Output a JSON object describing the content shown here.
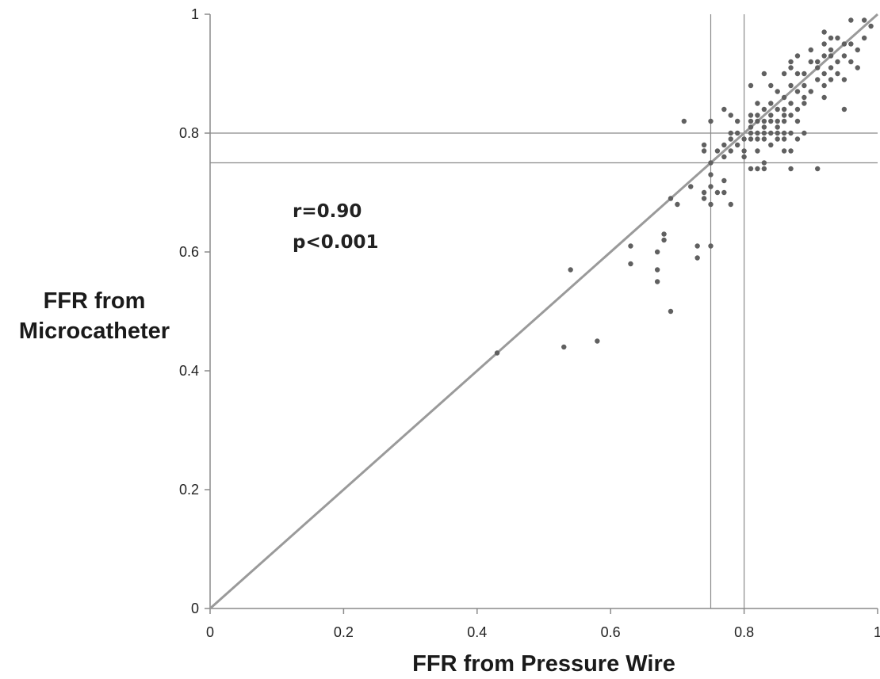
{
  "chart_data": {
    "type": "scatter",
    "title": "",
    "xlabel": "FFR from Pressure Wire",
    "ylabel_lines": [
      "FFR from",
      "Microcatheter"
    ],
    "xlim": [
      0,
      1
    ],
    "ylim": [
      0,
      1
    ],
    "xticks": [
      "0",
      "0.2",
      "0.4",
      "0.6",
      "0.8",
      "1"
    ],
    "yticks": [
      "0",
      "0.2",
      "0.4",
      "0.6",
      "0.8",
      "1"
    ],
    "xtick_values": [
      0,
      0.2,
      0.4,
      0.6,
      0.8,
      1
    ],
    "ytick_values": [
      0,
      0.2,
      0.4,
      0.6,
      0.8,
      1
    ],
    "grid": false,
    "reference_lines": {
      "vertical": [
        0.75,
        0.8
      ],
      "horizontal": [
        0.75,
        0.8
      ]
    },
    "identity_line": {
      "from": [
        0,
        0
      ],
      "to": [
        1,
        1
      ]
    },
    "annotations": [
      "r=0.90",
      "p<0.001"
    ],
    "colors": {
      "points": "#606060",
      "identity": "#9a9a9a",
      "refs": "#8a8a8a",
      "axis": "#8a8a8a"
    },
    "points": [
      [
        0.43,
        0.43
      ],
      [
        0.53,
        0.44
      ],
      [
        0.54,
        0.57
      ],
      [
        0.58,
        0.45
      ],
      [
        0.63,
        0.61
      ],
      [
        0.63,
        0.58
      ],
      [
        0.67,
        0.6
      ],
      [
        0.67,
        0.57
      ],
      [
        0.67,
        0.55
      ],
      [
        0.68,
        0.63
      ],
      [
        0.68,
        0.62
      ],
      [
        0.69,
        0.69
      ],
      [
        0.69,
        0.5
      ],
      [
        0.7,
        0.68
      ],
      [
        0.71,
        0.82
      ],
      [
        0.72,
        0.71
      ],
      [
        0.73,
        0.61
      ],
      [
        0.73,
        0.59
      ],
      [
        0.74,
        0.78
      ],
      [
        0.74,
        0.77
      ],
      [
        0.74,
        0.7
      ],
      [
        0.74,
        0.69
      ],
      [
        0.75,
        0.82
      ],
      [
        0.75,
        0.75
      ],
      [
        0.75,
        0.73
      ],
      [
        0.75,
        0.71
      ],
      [
        0.75,
        0.68
      ],
      [
        0.75,
        0.61
      ],
      [
        0.76,
        0.77
      ],
      [
        0.76,
        0.7
      ],
      [
        0.77,
        0.84
      ],
      [
        0.77,
        0.78
      ],
      [
        0.77,
        0.76
      ],
      [
        0.77,
        0.72
      ],
      [
        0.77,
        0.7
      ],
      [
        0.78,
        0.83
      ],
      [
        0.78,
        0.8
      ],
      [
        0.78,
        0.79
      ],
      [
        0.78,
        0.77
      ],
      [
        0.78,
        0.68
      ],
      [
        0.79,
        0.82
      ],
      [
        0.79,
        0.8
      ],
      [
        0.79,
        0.78
      ],
      [
        0.8,
        0.79
      ],
      [
        0.8,
        0.77
      ],
      [
        0.8,
        0.76
      ],
      [
        0.81,
        0.88
      ],
      [
        0.81,
        0.83
      ],
      [
        0.81,
        0.82
      ],
      [
        0.81,
        0.81
      ],
      [
        0.81,
        0.8
      ],
      [
        0.81,
        0.79
      ],
      [
        0.81,
        0.74
      ],
      [
        0.82,
        0.85
      ],
      [
        0.82,
        0.83
      ],
      [
        0.82,
        0.82
      ],
      [
        0.82,
        0.8
      ],
      [
        0.82,
        0.79
      ],
      [
        0.82,
        0.77
      ],
      [
        0.82,
        0.74
      ],
      [
        0.83,
        0.9
      ],
      [
        0.83,
        0.84
      ],
      [
        0.83,
        0.82
      ],
      [
        0.83,
        0.81
      ],
      [
        0.83,
        0.8
      ],
      [
        0.83,
        0.79
      ],
      [
        0.83,
        0.75
      ],
      [
        0.83,
        0.74
      ],
      [
        0.84,
        0.88
      ],
      [
        0.84,
        0.85
      ],
      [
        0.84,
        0.83
      ],
      [
        0.84,
        0.82
      ],
      [
        0.84,
        0.8
      ],
      [
        0.84,
        0.78
      ],
      [
        0.85,
        0.87
      ],
      [
        0.85,
        0.84
      ],
      [
        0.85,
        0.82
      ],
      [
        0.85,
        0.81
      ],
      [
        0.85,
        0.8
      ],
      [
        0.85,
        0.79
      ],
      [
        0.86,
        0.9
      ],
      [
        0.86,
        0.86
      ],
      [
        0.86,
        0.84
      ],
      [
        0.86,
        0.83
      ],
      [
        0.86,
        0.82
      ],
      [
        0.86,
        0.8
      ],
      [
        0.86,
        0.79
      ],
      [
        0.86,
        0.77
      ],
      [
        0.87,
        0.92
      ],
      [
        0.87,
        0.91
      ],
      [
        0.87,
        0.88
      ],
      [
        0.87,
        0.85
      ],
      [
        0.87,
        0.83
      ],
      [
        0.87,
        0.8
      ],
      [
        0.87,
        0.77
      ],
      [
        0.87,
        0.74
      ],
      [
        0.88,
        0.93
      ],
      [
        0.88,
        0.9
      ],
      [
        0.88,
        0.87
      ],
      [
        0.88,
        0.84
      ],
      [
        0.88,
        0.82
      ],
      [
        0.88,
        0.79
      ],
      [
        0.89,
        0.9
      ],
      [
        0.89,
        0.88
      ],
      [
        0.89,
        0.86
      ],
      [
        0.89,
        0.85
      ],
      [
        0.89,
        0.8
      ],
      [
        0.9,
        0.94
      ],
      [
        0.9,
        0.92
      ],
      [
        0.9,
        0.87
      ],
      [
        0.91,
        0.92
      ],
      [
        0.91,
        0.91
      ],
      [
        0.91,
        0.89
      ],
      [
        0.91,
        0.74
      ],
      [
        0.92,
        0.97
      ],
      [
        0.92,
        0.95
      ],
      [
        0.92,
        0.93
      ],
      [
        0.92,
        0.9
      ],
      [
        0.92,
        0.88
      ],
      [
        0.92,
        0.86
      ],
      [
        0.93,
        0.96
      ],
      [
        0.93,
        0.94
      ],
      [
        0.93,
        0.93
      ],
      [
        0.93,
        0.91
      ],
      [
        0.93,
        0.89
      ],
      [
        0.94,
        0.96
      ],
      [
        0.94,
        0.92
      ],
      [
        0.94,
        0.9
      ],
      [
        0.95,
        0.95
      ],
      [
        0.95,
        0.93
      ],
      [
        0.95,
        0.89
      ],
      [
        0.95,
        0.84
      ],
      [
        0.96,
        0.99
      ],
      [
        0.96,
        0.95
      ],
      [
        0.96,
        0.92
      ],
      [
        0.97,
        0.94
      ],
      [
        0.97,
        0.91
      ],
      [
        0.98,
        0.96
      ],
      [
        0.98,
        0.99
      ],
      [
        0.99,
        0.98
      ]
    ]
  }
}
